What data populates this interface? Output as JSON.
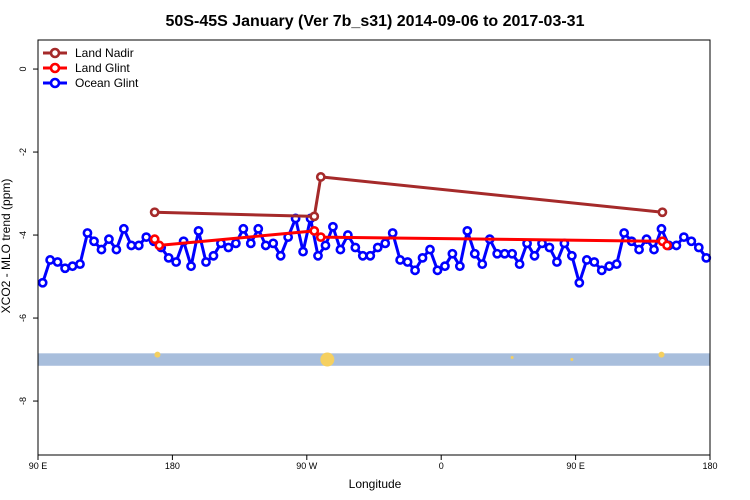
{
  "chart_data": {
    "type": "line",
    "title": "50S-45S January (Ver 7b_s31)   2014-09-06 to 2017-03-31",
    "xlabel": "Longitude",
    "ylabel": "XCO2 - MLO trend (ppm)",
    "xlim": [
      90,
      450
    ],
    "ylim": [
      -9.3,
      0.7
    ],
    "x_ticks": [
      {
        "value": 90,
        "label": "90 E"
      },
      {
        "value": 162,
        "label": "180"
      },
      {
        "value": 234,
        "label": "90 W"
      },
      {
        "value": 306,
        "label": "0"
      },
      {
        "value": 378,
        "label": "90 E"
      },
      {
        "value": 450,
        "label": "180"
      }
    ],
    "y_ticks": [
      {
        "value": 0,
        "label": "0"
      },
      {
        "value": -2,
        "label": "-2"
      },
      {
        "value": -4,
        "label": "-4"
      },
      {
        "value": -6,
        "label": "-6"
      },
      {
        "value": -8,
        "label": "-8"
      }
    ],
    "legend_position": "top-left",
    "grid": false,
    "series": [
      {
        "name": "Land Nadir",
        "color": "#a52a2a",
        "points": [
          [
            152.5,
            -3.45
          ],
          [
            238,
            -3.55
          ],
          [
            241.5,
            -2.6
          ],
          [
            424.5,
            -3.45
          ]
        ]
      },
      {
        "name": "Land Glint",
        "color": "#ff0000",
        "points": [
          [
            152.5,
            -4.1
          ],
          [
            155,
            -4.25
          ],
          [
            238,
            -3.9
          ],
          [
            241.5,
            -4.05
          ],
          [
            424.5,
            -4.15
          ],
          [
            427,
            -4.25
          ]
        ]
      },
      {
        "name": "Ocean Glint",
        "color": "#0000ff",
        "points": [
          [
            92.5,
            -5.15
          ],
          [
            96.5,
            -4.6
          ],
          [
            100.5,
            -4.65
          ],
          [
            104.5,
            -4.8
          ],
          [
            108.5,
            -4.75
          ],
          [
            112.5,
            -4.7
          ],
          [
            116.5,
            -3.95
          ],
          [
            120,
            -4.15
          ],
          [
            124,
            -4.35
          ],
          [
            128,
            -4.1
          ],
          [
            132,
            -4.35
          ],
          [
            136,
            -3.85
          ],
          [
            140,
            -4.25
          ],
          [
            144,
            -4.25
          ],
          [
            148,
            -4.05
          ],
          [
            152,
            -4.15
          ],
          [
            156,
            -4.3
          ],
          [
            160,
            -4.55
          ],
          [
            164,
            -4.65
          ],
          [
            168,
            -4.15
          ],
          [
            172,
            -4.75
          ],
          [
            176,
            -3.9
          ],
          [
            180,
            -4.65
          ],
          [
            184,
            -4.5
          ],
          [
            188,
            -4.2
          ],
          [
            192,
            -4.3
          ],
          [
            196,
            -4.2
          ],
          [
            200,
            -3.85
          ],
          [
            204,
            -4.2
          ],
          [
            208,
            -3.85
          ],
          [
            212,
            -4.25
          ],
          [
            216,
            -4.2
          ],
          [
            220,
            -4.5
          ],
          [
            224,
            -4.05
          ],
          [
            228,
            -3.6
          ],
          [
            232,
            -4.4
          ],
          [
            236,
            -3.6
          ],
          [
            240,
            -4.5
          ],
          [
            244,
            -4.25
          ],
          [
            248,
            -3.8
          ],
          [
            252,
            -4.35
          ],
          [
            256,
            -4.0
          ],
          [
            260,
            -4.3
          ],
          [
            264,
            -4.5
          ],
          [
            268,
            -4.5
          ],
          [
            272,
            -4.3
          ],
          [
            276,
            -4.2
          ],
          [
            280,
            -3.95
          ],
          [
            284,
            -4.6
          ],
          [
            288,
            -4.65
          ],
          [
            292,
            -4.85
          ],
          [
            296,
            -4.55
          ],
          [
            300,
            -4.35
          ],
          [
            304,
            -4.85
          ],
          [
            308,
            -4.75
          ],
          [
            312,
            -4.45
          ],
          [
            316,
            -4.75
          ],
          [
            320,
            -3.9
          ],
          [
            324,
            -4.45
          ],
          [
            328,
            -4.7
          ],
          [
            332,
            -4.1
          ],
          [
            336,
            -4.45
          ],
          [
            340,
            -4.45
          ],
          [
            344,
            -4.45
          ],
          [
            348,
            -4.7
          ],
          [
            352,
            -4.2
          ],
          [
            356,
            -4.5
          ],
          [
            360,
            -4.2
          ],
          [
            364,
            -4.3
          ],
          [
            368,
            -4.65
          ],
          [
            372,
            -4.2
          ],
          [
            376,
            -4.5
          ],
          [
            380,
            -5.15
          ],
          [
            384,
            -4.6
          ],
          [
            388,
            -4.65
          ],
          [
            392,
            -4.85
          ],
          [
            396,
            -4.75
          ],
          [
            400,
            -4.7
          ],
          [
            404,
            -3.95
          ],
          [
            408,
            -4.15
          ],
          [
            412,
            -4.35
          ],
          [
            416,
            -4.1
          ],
          [
            420,
            -4.35
          ],
          [
            424,
            -3.85
          ],
          [
            428,
            -4.25
          ],
          [
            432,
            -4.25
          ],
          [
            436,
            -4.05
          ],
          [
            440,
            -4.15
          ],
          [
            444,
            -4.3
          ],
          [
            448,
            -4.55
          ]
        ]
      }
    ],
    "band": {
      "color": "#a8bedc",
      "y_range": [
        -7.15,
        -6.85
      ]
    },
    "band_markers": {
      "color": "#f5d060",
      "points": [
        [
          154,
          -6.88,
          3
        ],
        [
          245,
          -7.0,
          7
        ],
        [
          344,
          -6.95,
          1.5
        ],
        [
          376,
          -7.0,
          1.5
        ],
        [
          424,
          -6.88,
          3
        ]
      ]
    }
  }
}
